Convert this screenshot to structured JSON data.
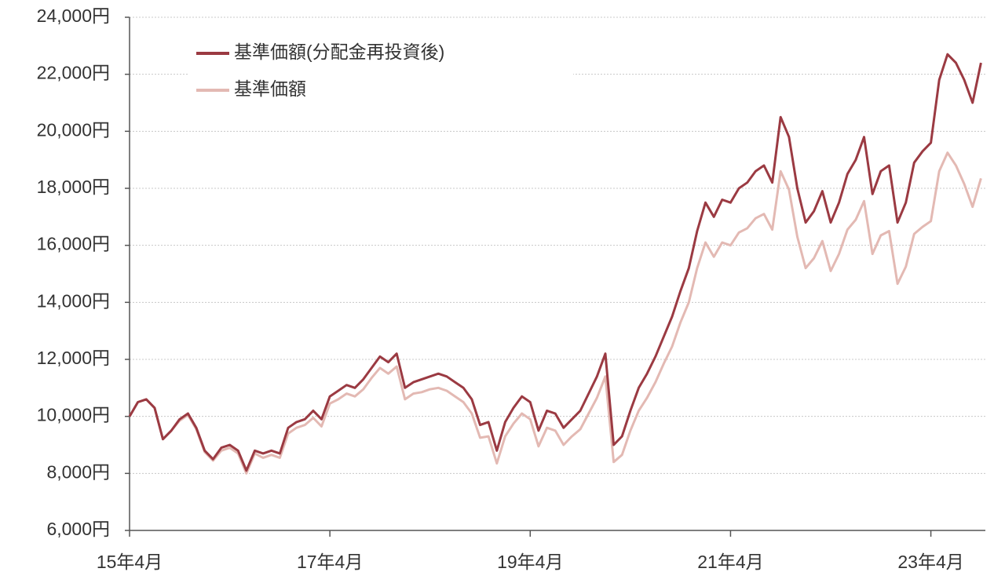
{
  "chart_data": {
    "type": "line",
    "x": [
      "2015-04",
      "2015-05",
      "2015-06",
      "2015-07",
      "2015-08",
      "2015-09",
      "2015-10",
      "2015-11",
      "2015-12",
      "2016-01",
      "2016-02",
      "2016-03",
      "2016-04",
      "2016-05",
      "2016-06",
      "2016-07",
      "2016-08",
      "2016-09",
      "2016-10",
      "2016-11",
      "2016-12",
      "2017-01",
      "2017-02",
      "2017-03",
      "2017-04",
      "2017-05",
      "2017-06",
      "2017-07",
      "2017-08",
      "2017-09",
      "2017-10",
      "2017-11",
      "2017-12",
      "2018-01",
      "2018-02",
      "2018-03",
      "2018-04",
      "2018-05",
      "2018-06",
      "2018-07",
      "2018-08",
      "2018-09",
      "2018-10",
      "2018-11",
      "2018-12",
      "2019-01",
      "2019-02",
      "2019-03",
      "2019-04",
      "2019-05",
      "2019-06",
      "2019-07",
      "2019-08",
      "2019-09",
      "2019-10",
      "2019-11",
      "2019-12",
      "2020-01",
      "2020-02",
      "2020-03",
      "2020-04",
      "2020-05",
      "2020-06",
      "2020-07",
      "2020-08",
      "2020-09",
      "2020-10",
      "2020-11",
      "2020-12",
      "2021-01",
      "2021-02",
      "2021-03",
      "2021-04",
      "2021-05",
      "2021-06",
      "2021-07",
      "2021-08",
      "2021-09",
      "2021-10",
      "2021-11",
      "2021-12",
      "2022-01",
      "2022-02",
      "2022-03",
      "2022-04",
      "2022-05",
      "2022-06",
      "2022-07",
      "2022-08",
      "2022-09",
      "2022-10",
      "2022-11",
      "2022-12",
      "2023-01",
      "2023-02",
      "2023-03",
      "2023-04",
      "2023-05",
      "2023-06",
      "2023-07",
      "2023-08",
      "2023-09",
      "2023-10"
    ],
    "series": [
      {
        "name": "基準価額(分配金再投資後)",
        "color": "#9b3a42",
        "values": [
          10000,
          10500,
          10600,
          10300,
          9200,
          9500,
          9900,
          10100,
          9600,
          8800,
          8500,
          8900,
          9000,
          8800,
          8100,
          8800,
          8700,
          8800,
          8700,
          9600,
          9800,
          9900,
          10200,
          9900,
          10700,
          10900,
          11100,
          11000,
          11300,
          11700,
          12100,
          11900,
          12200,
          11000,
          11200,
          11300,
          11400,
          11500,
          11400,
          11200,
          11000,
          10600,
          9700,
          9800,
          8800,
          9800,
          10300,
          10700,
          10500,
          9500,
          10200,
          10100,
          9600,
          9900,
          10200,
          10800,
          11400,
          12200,
          9000,
          9300,
          10200,
          11000,
          11500,
          12100,
          12800,
          13500,
          14400,
          15200,
          16500,
          17500,
          17000,
          17600,
          17500,
          18000,
          18200,
          18600,
          18800,
          18200,
          20500,
          19800,
          18000,
          16800,
          17200,
          17900,
          16800,
          17500,
          18500,
          19000,
          19800,
          17800,
          18600,
          18800,
          16800,
          17500,
          18900,
          19300,
          19600,
          21800,
          22700,
          22400,
          21800,
          21000,
          22400
        ]
      },
      {
        "name": "基準価額",
        "color": "#e3b9b3",
        "values": [
          10000,
          10500,
          10600,
          10300,
          9200,
          9500,
          9850,
          10050,
          9550,
          8750,
          8450,
          8800,
          8900,
          8700,
          8000,
          8700,
          8550,
          8650,
          8550,
          9400,
          9600,
          9700,
          9950,
          9650,
          10450,
          10600,
          10800,
          10700,
          10950,
          11350,
          11700,
          11500,
          11750,
          10600,
          10800,
          10850,
          10950,
          11000,
          10900,
          10700,
          10500,
          10100,
          9250,
          9300,
          8350,
          9300,
          9750,
          10100,
          9900,
          8950,
          9600,
          9500,
          9000,
          9300,
          9550,
          10100,
          10650,
          11400,
          8400,
          8650,
          9500,
          10200,
          10650,
          11200,
          11850,
          12450,
          13300,
          14000,
          15200,
          16100,
          15600,
          16100,
          16000,
          16450,
          16600,
          16950,
          17100,
          16550,
          18600,
          17950,
          16300,
          15200,
          15550,
          16150,
          15100,
          15700,
          16550,
          16900,
          17550,
          15700,
          16350,
          16500,
          14650,
          15250,
          16400,
          16650,
          16850,
          18600,
          19250,
          18800,
          18150,
          17350,
          18350
        ]
      }
    ],
    "xlim": [
      "2015-04",
      "2023-11"
    ],
    "xticks": [
      {
        "value": "2015-04",
        "label": "15年4月"
      },
      {
        "value": "2017-04",
        "label": "17年4月"
      },
      {
        "value": "2019-04",
        "label": "19年4月"
      },
      {
        "value": "2021-04",
        "label": "21年4月"
      },
      {
        "value": "2023-04",
        "label": "23年4月"
      }
    ],
    "ylim": [
      6000,
      24000
    ],
    "yticks": [
      {
        "value": 6000,
        "label": "6,000円"
      },
      {
        "value": 8000,
        "label": "8,000円"
      },
      {
        "value": 10000,
        "label": "10,000円"
      },
      {
        "value": 12000,
        "label": "12,000円"
      },
      {
        "value": 14000,
        "label": "14,000円"
      },
      {
        "value": 16000,
        "label": "16,000円"
      },
      {
        "value": 18000,
        "label": "18,000円"
      },
      {
        "value": 20000,
        "label": "20,000円"
      },
      {
        "value": 22000,
        "label": "22,000円"
      },
      {
        "value": 24000,
        "label": "24,000円"
      }
    ],
    "grid": true,
    "legend": "upper left"
  }
}
